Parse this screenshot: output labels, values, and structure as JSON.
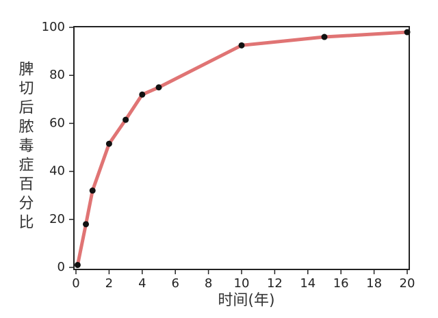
{
  "chart_data": {
    "type": "line",
    "x_label": "时间(年)",
    "y_label": "脾切后脓毒症百分比",
    "x": [
      0.1,
      0.6,
      1,
      2,
      3,
      4,
      5,
      10,
      15,
      20
    ],
    "values": [
      1,
      18,
      32,
      51.5,
      61.5,
      72,
      75,
      92.5,
      96,
      98
    ],
    "color": "#e07474",
    "marker_color": "#111111",
    "xlim": [
      0,
      20
    ],
    "xticks": [
      0,
      2,
      4,
      6,
      8,
      10,
      12,
      14,
      16,
      18,
      20
    ],
    "ylim": [
      0,
      100
    ],
    "yticks": [
      0,
      20,
      40,
      60,
      80,
      100
    ],
    "grid": false
  }
}
